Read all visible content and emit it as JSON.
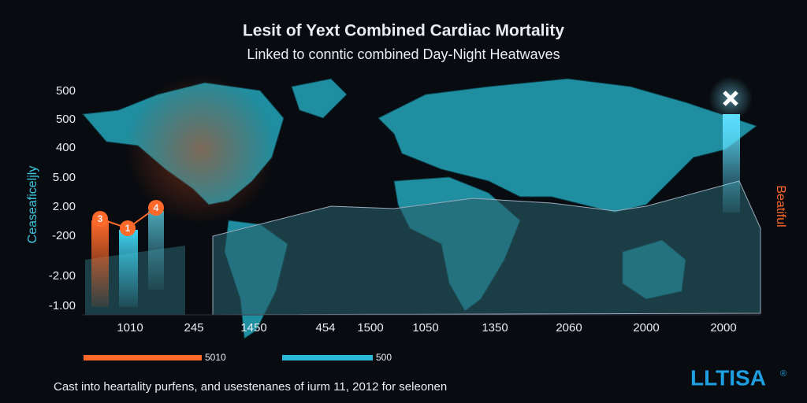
{
  "header": {
    "title": "Lesit of Yext Combined Cardiac Mortality",
    "subtitle": "Linked to conntic combined Day-Night Heatwaves"
  },
  "y_labels": [
    "500",
    "500",
    "400",
    "5.00",
    "2.00",
    "-200",
    "-2.00",
    "-1.00"
  ],
  "x_labels": [
    "1010",
    "245",
    "1450",
    "454",
    "1500",
    "1050",
    "1350",
    "2060",
    "2000",
    "2000"
  ],
  "left_axis_label": "Ceaseaficeljly",
  "right_axis_label": "Beatiful",
  "markers": [
    "3",
    "1",
    "4"
  ],
  "legend": [
    {
      "label": "5010"
    },
    {
      "label": "500"
    }
  ],
  "footer": {
    "caption": "Cast into heartality purfens, and usestenanes of iurm 11, 2012 for seleonen",
    "logo": "LLTISA",
    "logo_mark": "®"
  }
}
